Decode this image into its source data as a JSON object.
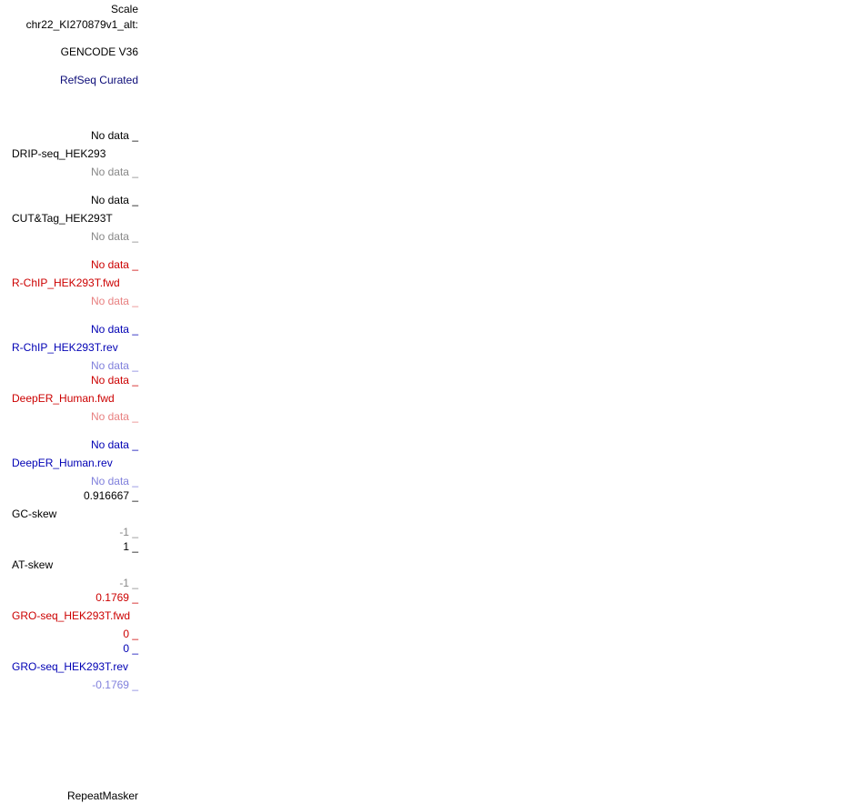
{
  "header": {
    "scale": "Scale",
    "chromosome": "chr22_KI270879v1_alt:"
  },
  "gencode": {
    "label": "GENCODE V36",
    "color": "#000000"
  },
  "refseq": {
    "label": "RefSeq Curated",
    "color": "#0c0c78"
  },
  "tracks": [
    {
      "name": "DRIP-seq_HEK293",
      "max": "No data _",
      "min": "No data _",
      "color": "#000000",
      "min_color": "#888888"
    },
    {
      "name": "CUT&Tag_HEK293T",
      "max": "No data _",
      "min": "No data _",
      "color": "#000000",
      "min_color": "#888888"
    },
    {
      "name": "R-ChIP_HEK293T.fwd",
      "max": "No data _",
      "min": "No data _",
      "color": "#cc0000",
      "min_color": "#e88080"
    },
    {
      "name": "R-ChIP_HEK293T.rev",
      "max": "No data _",
      "min": "No data _",
      "color": "#0000b4",
      "min_color": "#8080dc"
    },
    {
      "name": "DeepER_Human.fwd",
      "max": "No data _",
      "min": "No data _",
      "color": "#cc0000",
      "min_color": "#e88080"
    },
    {
      "name": "DeepER_Human.rev",
      "max": "No data _",
      "min": "No data _",
      "color": "#0000b4",
      "min_color": "#8080dc"
    },
    {
      "name": "GC-skew",
      "max": "0.916667 _",
      "min": "-1 _",
      "color": "#000000",
      "min_color": "#888888"
    },
    {
      "name": "AT-skew",
      "max": "1 _",
      "min": "-1 _",
      "color": "#000000",
      "min_color": "#888888"
    },
    {
      "name": "GRO-seq_HEK293T.fwd",
      "max": "0.1769 _",
      "min": "0 _",
      "color": "#cc0000",
      "min_color": "#cc0000"
    },
    {
      "name": "GRO-seq_HEK293T.rev",
      "max": "0 _",
      "min": "-0.1769 _",
      "color": "#0000b4",
      "min_color": "#8080dc"
    }
  ],
  "repeatmasker": {
    "label": "RepeatMasker",
    "color": "#000000"
  }
}
